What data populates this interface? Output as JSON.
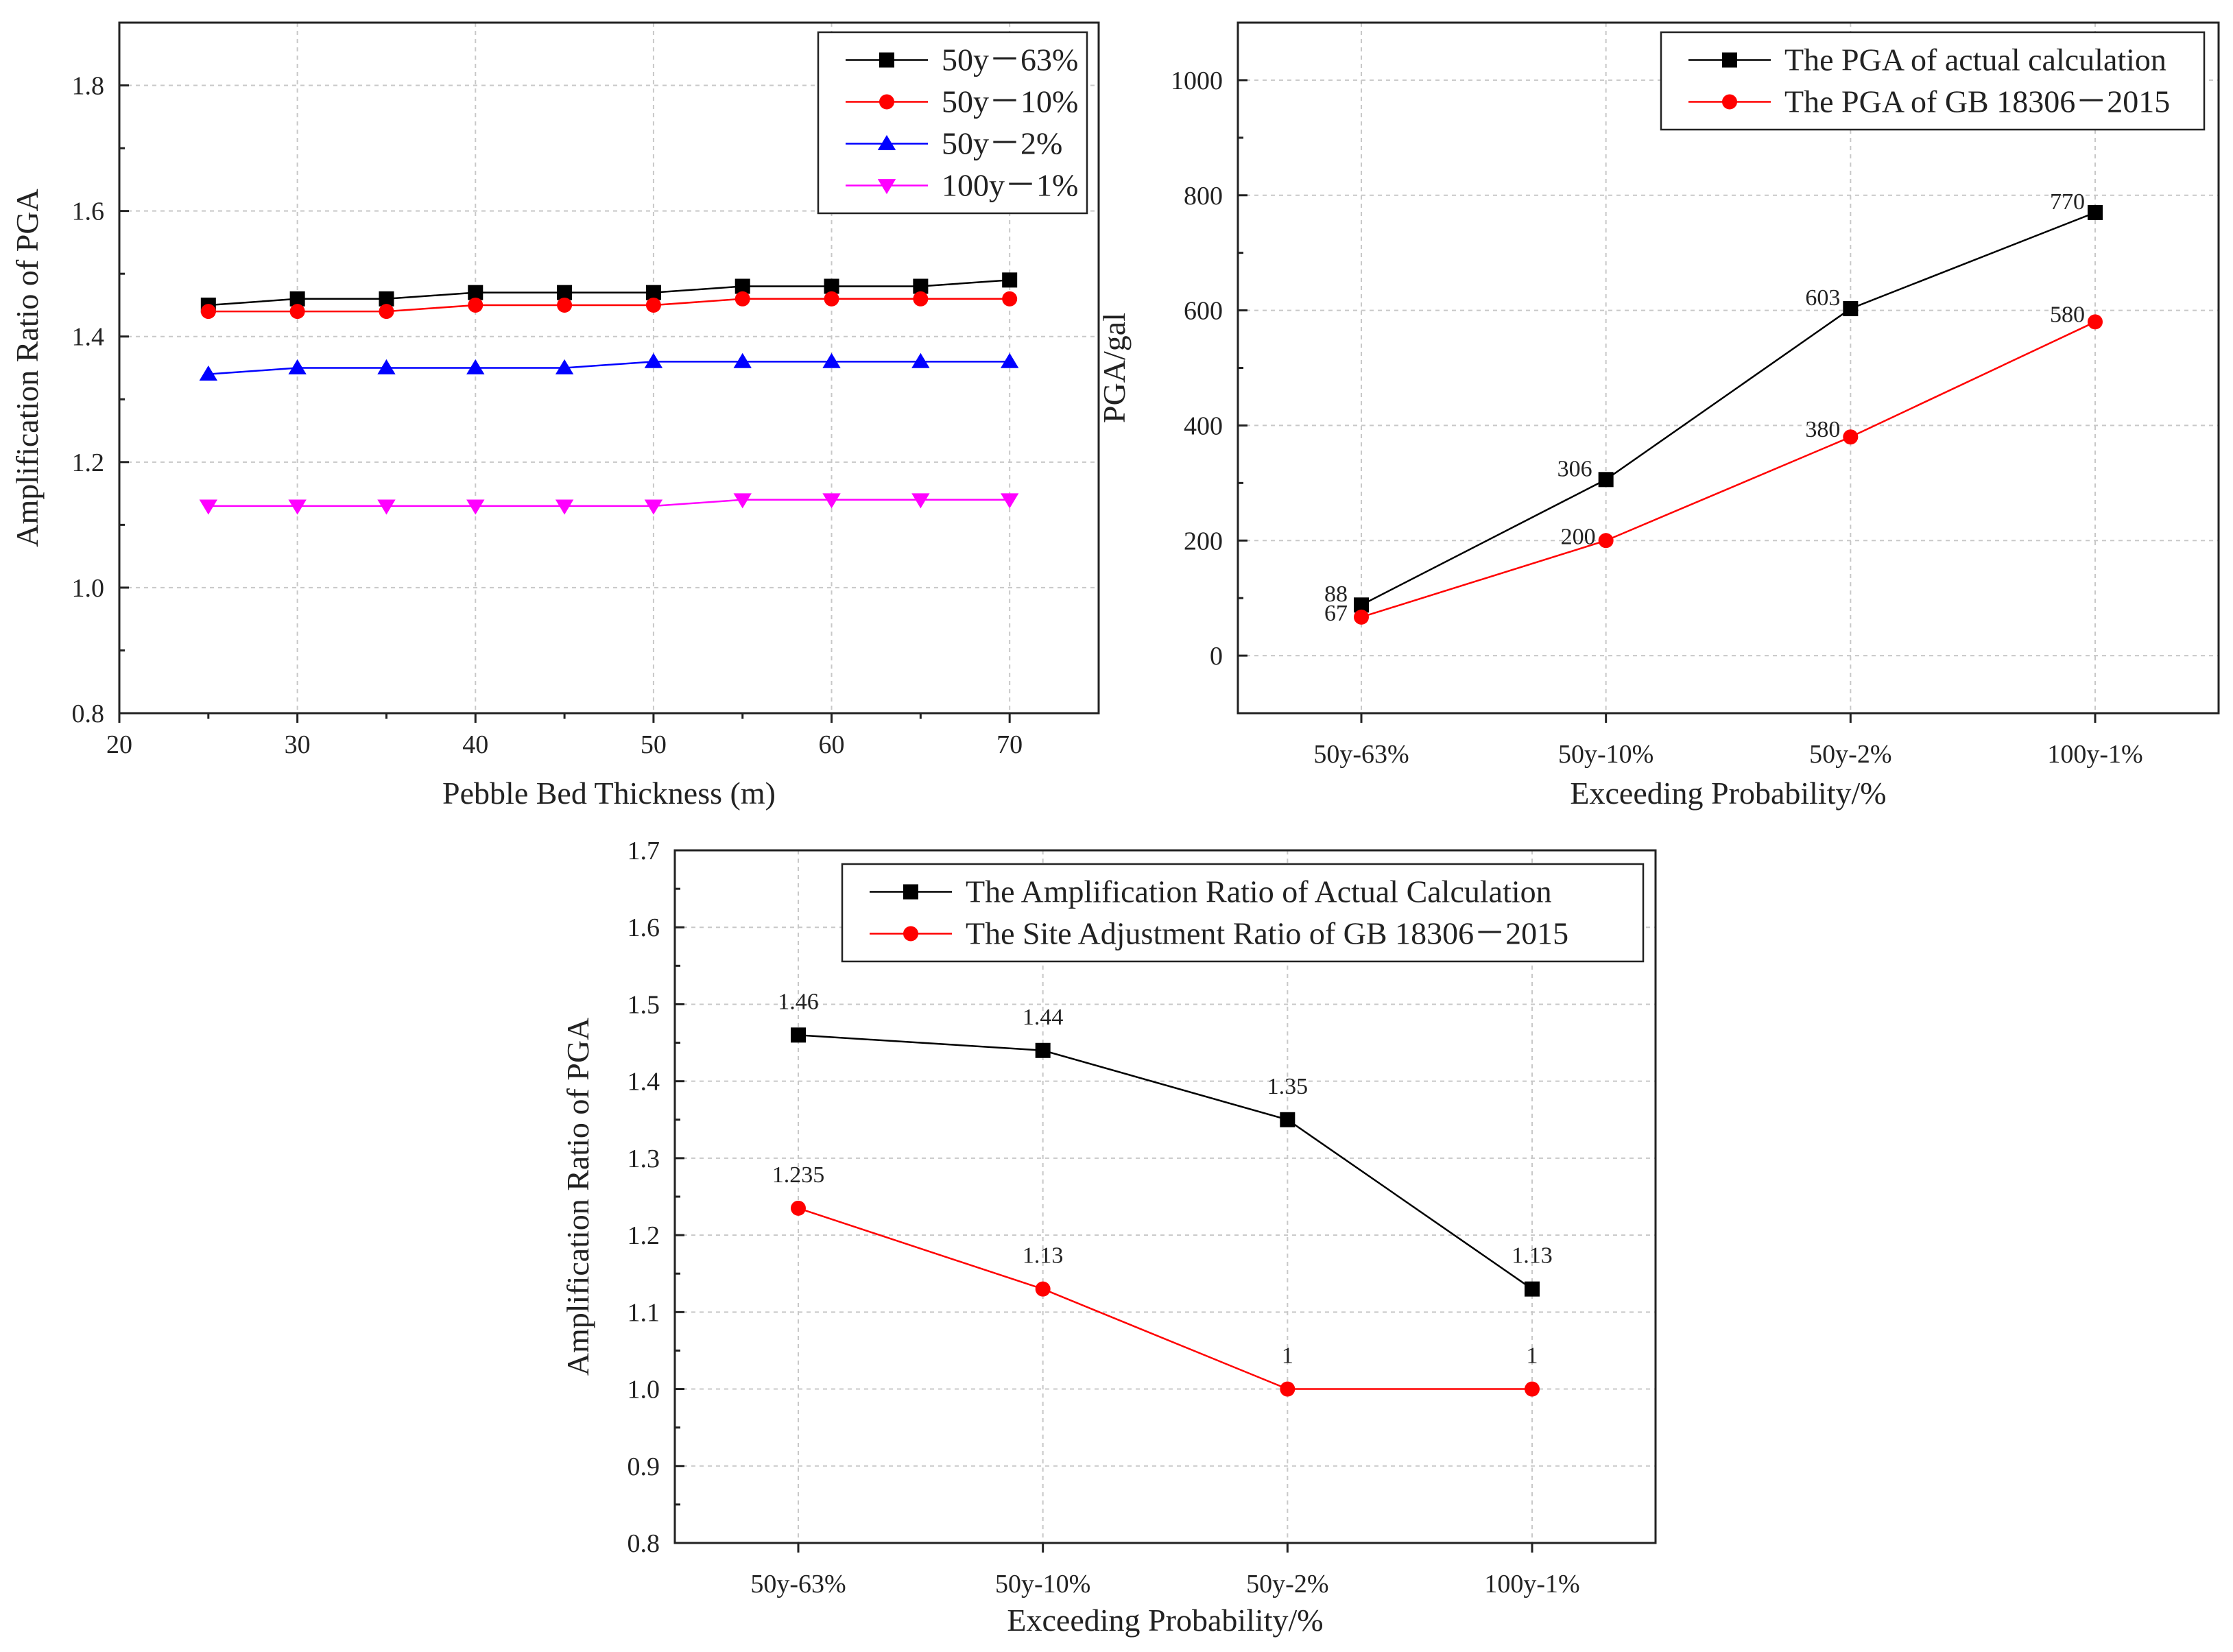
{
  "chart_data": [
    {
      "id": "chart1",
      "type": "line",
      "title": "",
      "xlabel": "Pebble Bed Thickness (m)",
      "ylabel": "Amplification Ratio of PGA",
      "xlim": [
        20,
        75
      ],
      "ylim": [
        0.8,
        1.9
      ],
      "xticks": [
        20,
        30,
        40,
        50,
        60,
        70
      ],
      "yticks": [
        0.8,
        1.0,
        1.2,
        1.4,
        1.6,
        1.8
      ],
      "ytick_format": 1,
      "grid": true,
      "legend_position": "top-right",
      "x": [
        25,
        30,
        35,
        40,
        45,
        50,
        55,
        60,
        65,
        70
      ],
      "series": [
        {
          "name": "50y－63%",
          "color": "#000000",
          "marker": "square",
          "values": [
            1.45,
            1.46,
            1.46,
            1.47,
            1.47,
            1.47,
            1.48,
            1.48,
            1.48,
            1.49
          ]
        },
        {
          "name": "50y－10%",
          "color": "#ff0000",
          "marker": "circle",
          "values": [
            1.44,
            1.44,
            1.44,
            1.45,
            1.45,
            1.45,
            1.46,
            1.46,
            1.46,
            1.46
          ]
        },
        {
          "name": "50y－2%",
          "color": "#0000ff",
          "marker": "triangle-up",
          "values": [
            1.34,
            1.35,
            1.35,
            1.35,
            1.35,
            1.36,
            1.36,
            1.36,
            1.36,
            1.36
          ]
        },
        {
          "name": "100y－1%",
          "color": "#ff00ff",
          "marker": "triangle-down",
          "values": [
            1.13,
            1.13,
            1.13,
            1.13,
            1.13,
            1.13,
            1.14,
            1.14,
            1.14,
            1.14
          ]
        }
      ]
    },
    {
      "id": "chart2",
      "type": "line",
      "title": "",
      "xlabel": "Exceeding Probability/%",
      "ylabel": "PGA/gal",
      "categories": [
        "50y-63%",
        "50y-10%",
        "50y-2%",
        "100y-1%"
      ],
      "ylim": [
        -100,
        1100
      ],
      "yticks": [
        0,
        200,
        400,
        600,
        800,
        1000
      ],
      "ytick_format": 0,
      "grid": true,
      "legend_position": "top-right",
      "series": [
        {
          "name": "The PGA of actual calculation",
          "color": "#000000",
          "marker": "square",
          "values": [
            88,
            306,
            603,
            770
          ],
          "labels": [
            "88",
            "306",
            "603",
            "770"
          ]
        },
        {
          "name": "The PGA of GB 18306－2015",
          "color": "#ff0000",
          "marker": "circle",
          "values": [
            67,
            200,
            380,
            580
          ],
          "labels": [
            "67",
            "200",
            "380",
            "580"
          ]
        }
      ]
    },
    {
      "id": "chart3",
      "type": "line",
      "title": "",
      "xlabel": "Exceeding Probability/%",
      "ylabel": "Amplification Ratio of PGA",
      "categories": [
        "50y-63%",
        "50y-10%",
        "50y-2%",
        "100y-1%"
      ],
      "ylim": [
        0.8,
        1.7
      ],
      "yticks": [
        0.8,
        0.9,
        1.0,
        1.1,
        1.2,
        1.3,
        1.4,
        1.5,
        1.6,
        1.7
      ],
      "ytick_format": 1,
      "grid": true,
      "legend_position": "top-right",
      "series": [
        {
          "name": "The Amplification Ratio of Actual Calculation",
          "color": "#000000",
          "marker": "square",
          "values": [
            1.46,
            1.44,
            1.35,
            1.13
          ],
          "labels": [
            "1.46",
            "1.44",
            "1.35",
            "1.13"
          ]
        },
        {
          "name": "The Site Adjustment Ratio of GB 18306－2015",
          "color": "#ff0000",
          "marker": "circle",
          "values": [
            1.235,
            1.13,
            1.0,
            1.0
          ],
          "labels": [
            "1.235",
            "1.13",
            "1",
            "1"
          ]
        }
      ]
    }
  ]
}
